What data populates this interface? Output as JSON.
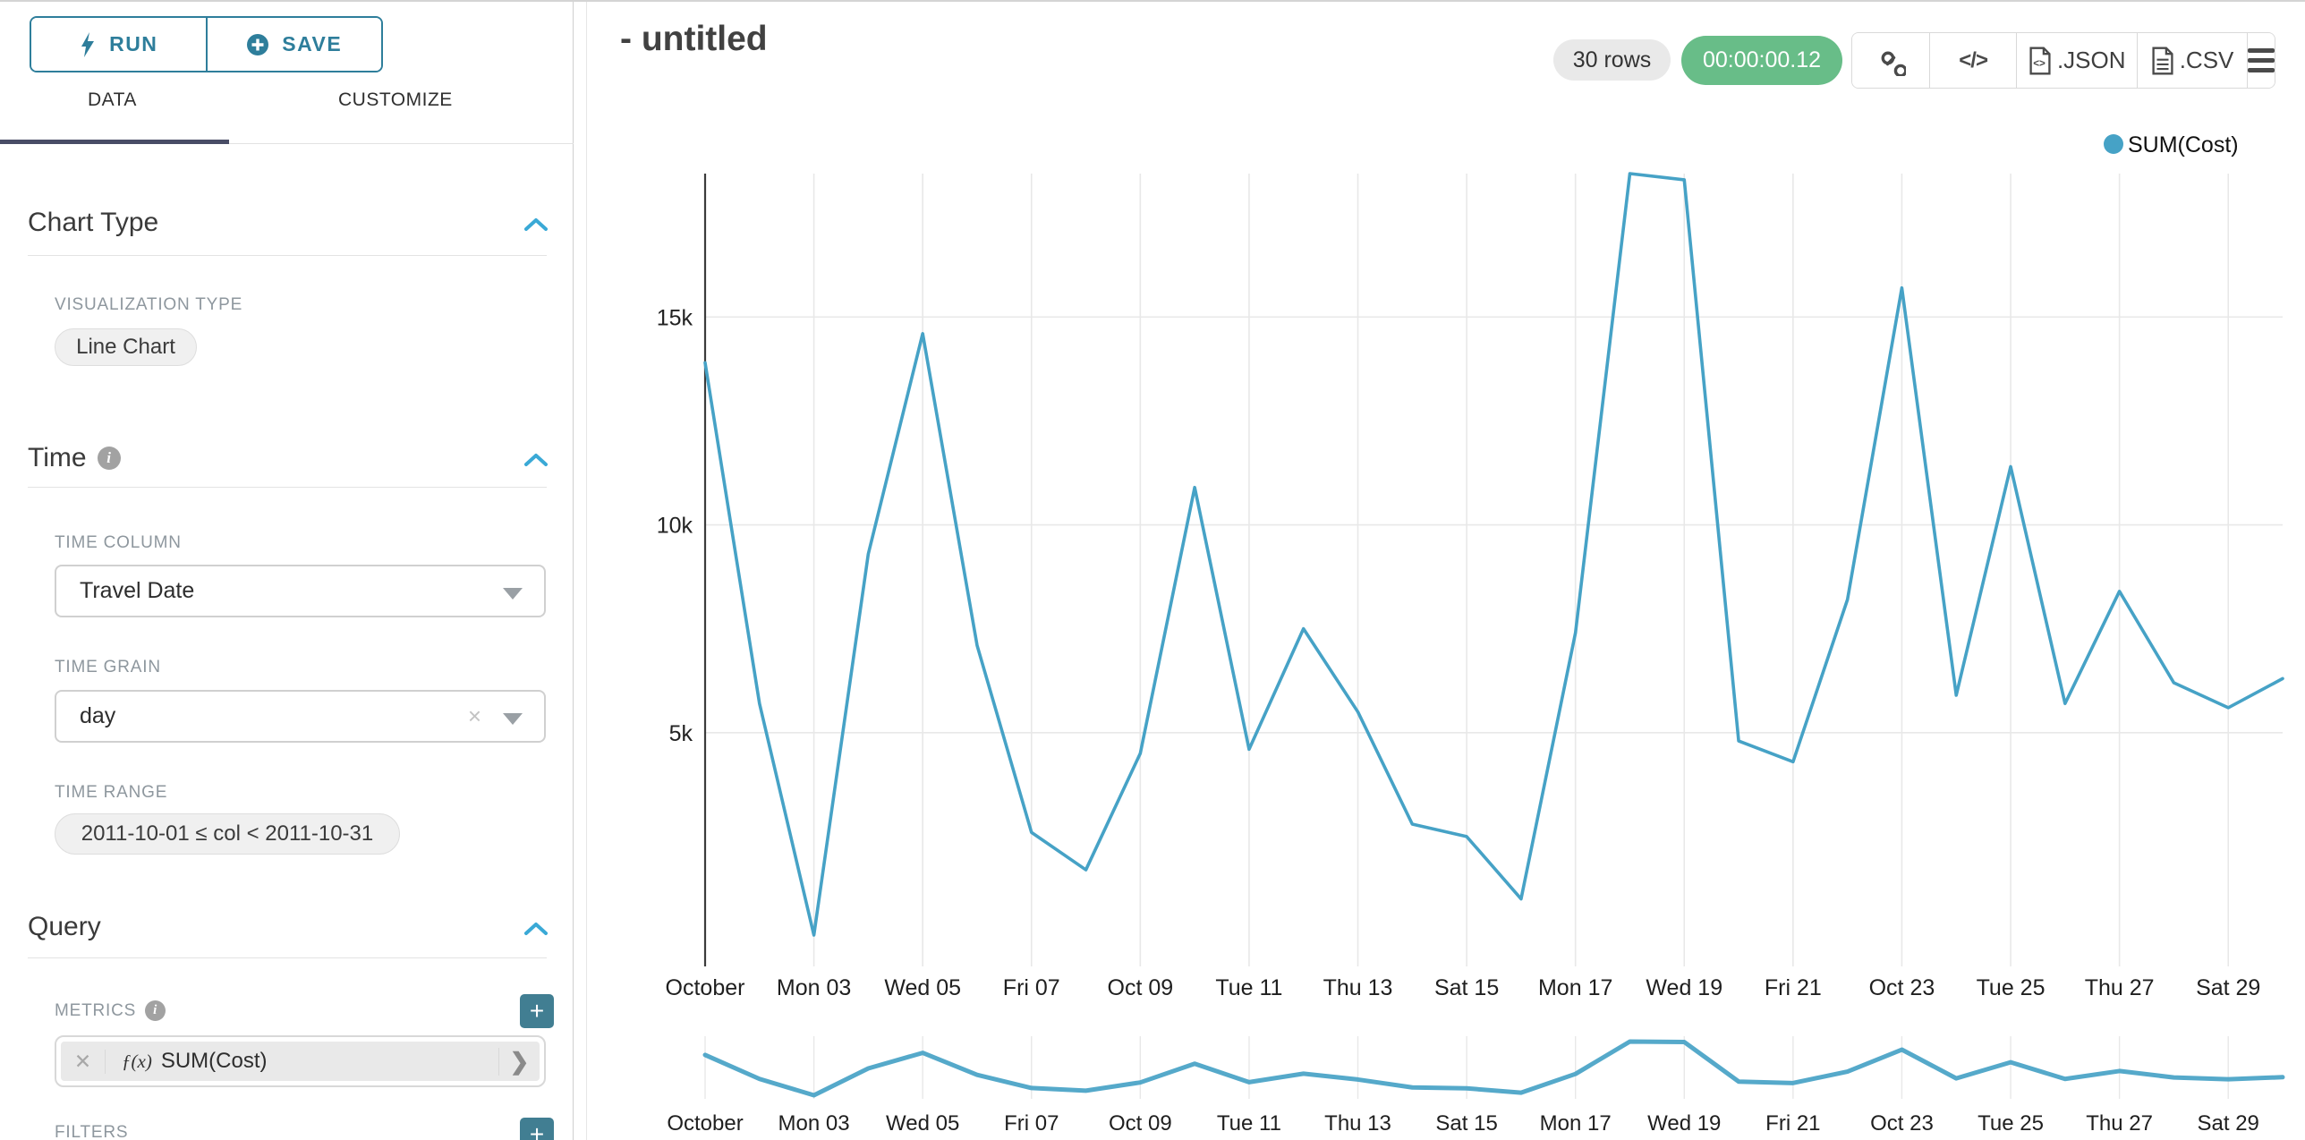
{
  "sidebar": {
    "run_label": "RUN",
    "save_label": "SAVE",
    "tabs": [
      {
        "label": "DATA"
      },
      {
        "label": "CUSTOMIZE"
      }
    ],
    "chart_type": {
      "heading": "Chart Type",
      "viz_type_label": "VISUALIZATION TYPE",
      "viz_type_value": "Line Chart"
    },
    "time": {
      "heading": "Time",
      "time_column_label": "TIME COLUMN",
      "time_column_value": "Travel Date",
      "time_grain_label": "TIME GRAIN",
      "time_grain_value": "day",
      "time_range_label": "TIME RANGE",
      "time_range_value": "2011-10-01 ≤ col < 2011-10-31"
    },
    "query": {
      "heading": "Query",
      "metrics_label": "METRICS",
      "metric_fx": "ƒ(x)",
      "metric_value": "SUM(Cost)",
      "metric_clear": "✕",
      "metric_chevron": "❯",
      "filters_label": "FILTERS",
      "add_label": "+"
    }
  },
  "header": {
    "title": "- untitled",
    "rows_badge": "30 rows",
    "timer": "00:00:00.12",
    "timer_color": "#68bd88",
    "json_label": ".JSON",
    "csv_label": ".CSV"
  },
  "chart_data": {
    "type": "line",
    "title": "",
    "legend": [
      {
        "name": "SUM(Cost)",
        "color": "#46a2c6"
      }
    ],
    "xlabel": "",
    "ylabel": "",
    "x_dates": [
      "Oct 01",
      "Oct 02",
      "Oct 03",
      "Oct 04",
      "Oct 05",
      "Oct 06",
      "Oct 07",
      "Oct 08",
      "Oct 09",
      "Oct 10",
      "Oct 11",
      "Oct 12",
      "Oct 13",
      "Oct 14",
      "Oct 15",
      "Oct 16",
      "Oct 17",
      "Oct 18",
      "Oct 19",
      "Oct 20",
      "Oct 21",
      "Oct 22",
      "Oct 23",
      "Oct 24",
      "Oct 25",
      "Oct 26",
      "Oct 27",
      "Oct 28",
      "Oct 29",
      "Oct 30"
    ],
    "series": [
      {
        "name": "SUM(Cost)",
        "values": [
          13900,
          5700,
          130,
          9300,
          14600,
          7100,
          2600,
          1700,
          4500,
          10900,
          4600,
          7500,
          5500,
          2800,
          2500,
          1000,
          7400,
          18450,
          18300,
          4800,
          4300,
          8200,
          15700,
          5900,
          11400,
          5700,
          8400,
          6200,
          5600,
          6300
        ]
      }
    ],
    "x_tick_indices": [
      0,
      2,
      4,
      6,
      8,
      10,
      12,
      14,
      16,
      18,
      20,
      22,
      24,
      26,
      28
    ],
    "x_tick_labels": [
      "October",
      "Mon 03",
      "Wed 05",
      "Fri 07",
      "Oct 09",
      "Tue 11",
      "Thu 13",
      "Sat 15",
      "Mon 17",
      "Wed 19",
      "Fri 21",
      "Oct 23",
      "Tue 25",
      "Thu 27",
      "Sat 29"
    ],
    "y_ticks": [
      {
        "label": "5k",
        "value": 5000
      },
      {
        "label": "10k",
        "value": 10000
      },
      {
        "label": "15k",
        "value": 15000
      }
    ],
    "ylim": [
      130,
      18450
    ],
    "grid": true,
    "legend_position": "top-right",
    "has_mini_overview": true,
    "line_color": "#46a2c6",
    "grid_color": "#e8e8e8",
    "axis_color": "#3b3b3b"
  }
}
